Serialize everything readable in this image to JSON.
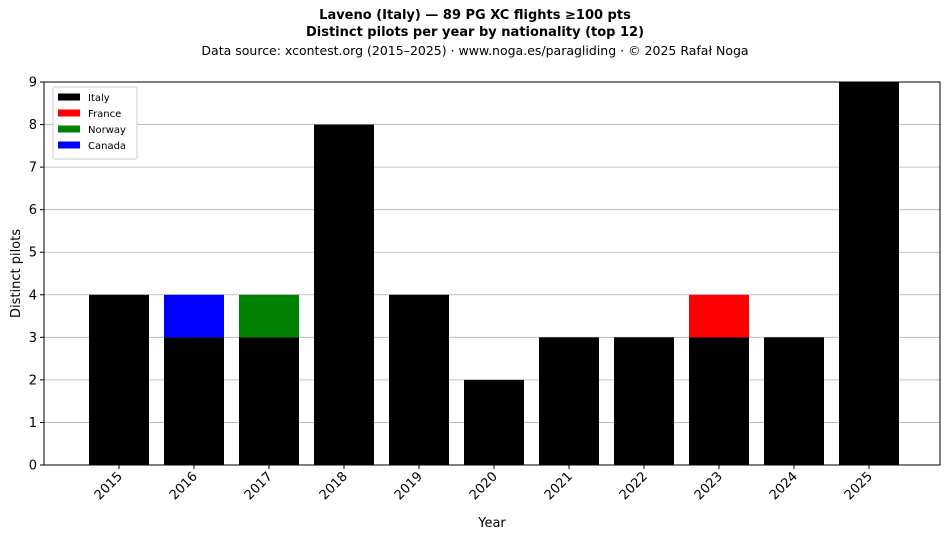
{
  "header": {
    "title": "Laveno (Italy)  —  89 PG XC flights ≥100 pts",
    "subtitle": "Distinct pilots per year by nationality (top 12)",
    "source": "Data source: xcontest.org (2015–2025)  ·  www.noga.es/paragliding  ·  © 2025 Rafał Noga"
  },
  "chart_data": {
    "type": "bar",
    "stacked": true,
    "title": "Laveno (Italy)  —  89 PG XC flights ≥100 pts",
    "subtitle": "Distinct pilots per year by nationality (top 12)",
    "xlabel": "Year",
    "ylabel": "Distinct pilots",
    "ylim": [
      0,
      9
    ],
    "yticks": [
      0,
      1,
      2,
      3,
      4,
      5,
      6,
      7,
      8,
      9
    ],
    "grid": "horizontal",
    "legend_position": "top-left",
    "categories": [
      "2015",
      "2016",
      "2017",
      "2018",
      "2019",
      "2020",
      "2021",
      "2022",
      "2023",
      "2024",
      "2025"
    ],
    "series": [
      {
        "name": "Italy",
        "color": "#000000",
        "values": [
          4,
          3,
          3,
          8,
          4,
          2,
          3,
          3,
          3,
          3,
          9
        ]
      },
      {
        "name": "France",
        "color": "#ff0000",
        "values": [
          0,
          0,
          0,
          0,
          0,
          0,
          0,
          0,
          1,
          0,
          0
        ]
      },
      {
        "name": "Norway",
        "color": "#008000",
        "values": [
          0,
          0,
          1,
          0,
          0,
          0,
          0,
          0,
          0,
          0,
          0
        ]
      },
      {
        "name": "Canada",
        "color": "#0000ff",
        "values": [
          0,
          1,
          0,
          0,
          0,
          0,
          0,
          0,
          0,
          0,
          0
        ]
      }
    ]
  }
}
